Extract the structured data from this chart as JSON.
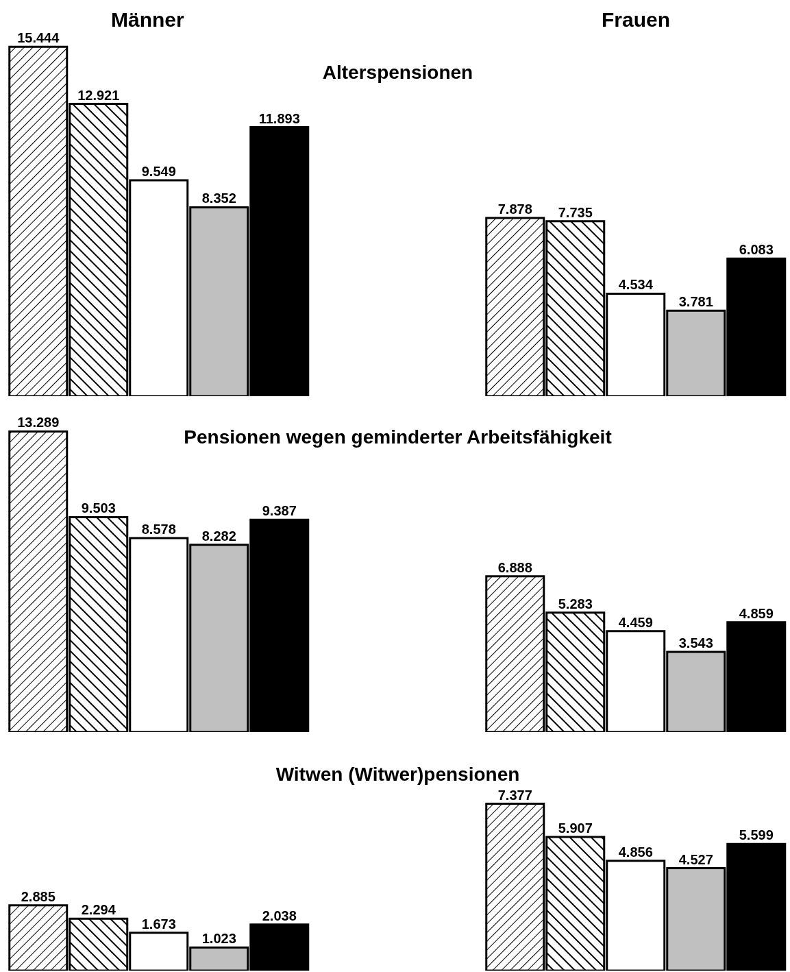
{
  "chart_data": [
    {
      "type": "bar",
      "title": "Männer",
      "categories": [
        null,
        null,
        null,
        null,
        null
      ],
      "values": [
        15444,
        12921,
        9549,
        8352,
        11893
      ],
      "value_labels": [
        "15.444",
        "12.921",
        "9.549",
        "8.352",
        "11.893"
      ],
      "colors": [
        "#000000",
        "#000000",
        "#ffffff",
        "#c0c0c0",
        "#000000"
      ]
    },
    {
      "type": "bar",
      "title": "Frauen",
      "categories": [
        null,
        null,
        null,
        null,
        null
      ],
      "values": [
        7878,
        7735,
        4534,
        3781,
        6083
      ],
      "value_labels": [
        "7.878",
        "7.735",
        "4.534",
        "3.781",
        "6.083"
      ],
      "colors": [
        "#000000",
        "#000000",
        "#ffffff",
        "#c0c0c0",
        "#000000"
      ]
    },
    {
      "type": "other",
      "title": "Alterspensionen"
    },
    {
      "type": "other",
      "title": "Pensionen wegen geminderter Arbeitsfähigkeit"
    },
    {
      "type": "bar",
      "categories": [
        null,
        null,
        null,
        null,
        null
      ],
      "values": [
        13289,
        9503,
        8578,
        8282,
        9387
      ],
      "value_labels": [
        "13.289",
        "9.503",
        "8.578",
        "8.282",
        "9.387"
      ],
      "colors": [
        "#000000",
        "#000000",
        "#ffffff",
        "#c0c0c0",
        "#000000"
      ]
    },
    {
      "type": "bar",
      "categories": [
        null,
        null,
        null,
        null,
        null
      ],
      "values": [
        6888,
        5283,
        4459,
        3543,
        4859
      ],
      "value_labels": [
        "6.888",
        "5.283",
        "4.459",
        "3.543",
        "4.859"
      ],
      "colors": [
        "#000000",
        "#000000",
        "#ffffff",
        "#c0c0c0",
        "#000000"
      ]
    },
    {
      "type": "other",
      "title": "Witwen (Witwer)pensionen"
    },
    {
      "type": "bar",
      "categories": [
        null,
        null,
        null,
        null,
        null
      ],
      "values": [
        2885,
        2294,
        1673,
        1023,
        2038
      ],
      "value_labels": [
        "2.885",
        "2.294",
        "1.673",
        "1.023",
        "2.038"
      ],
      "colors": [
        "#000000",
        "#000000",
        "#ffffff",
        "#c0c0c0",
        "#000000"
      ]
    },
    {
      "type": "bar",
      "categories": [
        null,
        null,
        null,
        null,
        null
      ],
      "values": [
        7377,
        5907,
        4856,
        4527,
        5599
      ],
      "value_labels": [
        "7.377",
        "5.907",
        "4.856",
        "4.527",
        "5.599"
      ],
      "colors": [
        "#000000",
        "#000000",
        "#ffffff",
        "#c0c0c0",
        "#000000"
      ]
    }
  ]
}
